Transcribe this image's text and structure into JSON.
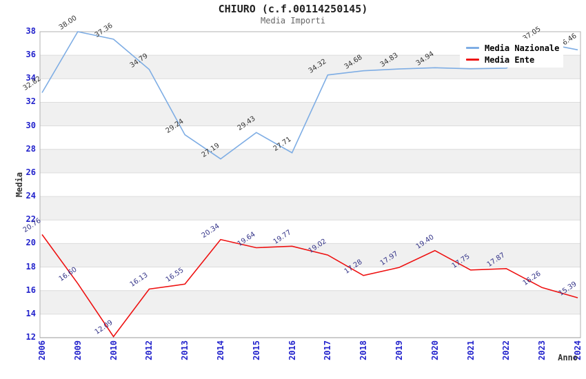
{
  "header": {
    "title": "CHIURO (c.f.00114250145)",
    "subtitle": "Media Importi"
  },
  "axes": {
    "y_title": "Media",
    "x_title": "Anno",
    "y_ticks": [
      38,
      36,
      34,
      32,
      30,
      28,
      26,
      24,
      22,
      20,
      18,
      16,
      14,
      12
    ],
    "tick_color": "#2323cc"
  },
  "legend": {
    "items": [
      {
        "label": "Media Nazionale",
        "color": "#7eade4"
      },
      {
        "label": "Media Ente",
        "color": "#ee1111"
      }
    ]
  },
  "chart_data": {
    "type": "line",
    "title": "CHIURO (c.f.00114250145)",
    "subtitle": "Media Importi",
    "xlabel": "Anno",
    "ylabel": "Media",
    "ylim": [
      12,
      38
    ],
    "grid": "horizontal gridlines every 2 units with alternating gray bands",
    "band_color": "#f0f0f0",
    "gridline_color": "#dcdcdc",
    "border_color": "#b0b0b0",
    "legend_position": "top-right",
    "x": [
      "2006",
      "2009",
      "2010",
      "2012",
      "2013",
      "2014",
      "2015",
      "2016",
      "2017",
      "2018",
      "2019",
      "2020",
      "2021",
      "2022",
      "2023",
      "2024"
    ],
    "series": [
      {
        "name": "Media Nazionale",
        "color": "#7eade4",
        "label_color": "#333333",
        "values": [
          32.82,
          38.0,
          37.36,
          34.79,
          29.24,
          27.19,
          29.43,
          27.71,
          34.32,
          34.68,
          34.83,
          34.94,
          34.85,
          34.9,
          37.05,
          36.46
        ],
        "labels": [
          "32.82",
          "38.00",
          "37.36",
          "34.79",
          "29.24",
          "27.19",
          "29.43",
          "27.71",
          "34.32",
          "34.68",
          "34.83",
          "34.94",
          "",
          "",
          "37.05",
          "36.46"
        ]
      },
      {
        "name": "Media Ente",
        "color": "#ee1111",
        "label_color": "#333388",
        "values": [
          20.76,
          16.6,
          12.09,
          16.13,
          16.55,
          20.34,
          19.64,
          19.77,
          19.02,
          17.28,
          17.97,
          19.4,
          17.75,
          17.87,
          16.26,
          15.39
        ],
        "labels": [
          "20.76",
          "16.60",
          "12.09",
          "16.13",
          "16.55",
          "20.34",
          "19.64",
          "19.77",
          "19.02",
          "17.28",
          "17.97",
          "19.40",
          "17.75",
          "17.87",
          "16.26",
          "15.39"
        ]
      }
    ]
  }
}
